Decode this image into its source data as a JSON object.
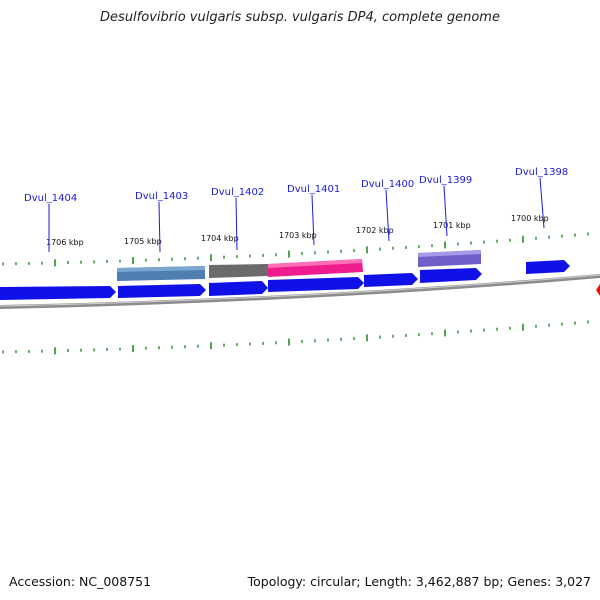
{
  "title": "Desulfovibrio vulgaris subsp. vulgaris DP4, complete genome",
  "footer": {
    "accession": "Accession: NC_008751",
    "summary": "Topology: circular; Length: 3,462,887 bp; Genes: 3,027"
  },
  "ruler_labels": [
    "1706 kbp",
    "1705 kbp",
    "1704 kbp",
    "1703 kbp",
    "1702 kbp",
    "1701 kbp",
    "1700 kbp"
  ],
  "gene_labels": [
    "Dvul_1404",
    "Dvul_1403",
    "Dvul_1402",
    "Dvul_1401",
    "Dvul_1400",
    "Dvul_1399",
    "Dvul_1398"
  ],
  "colors": {
    "cds": "#1010e8",
    "backbone": "#8c8c8c",
    "tick": "#2a8a2a",
    "label": "#1a1adc",
    "feature_steelblue": "#4f7fb0",
    "feature_gray": "#6a6a6a",
    "feature_pink": "#ee1c8c",
    "feature_purple": "#6f5fc8",
    "marker": "#ee1111"
  }
}
